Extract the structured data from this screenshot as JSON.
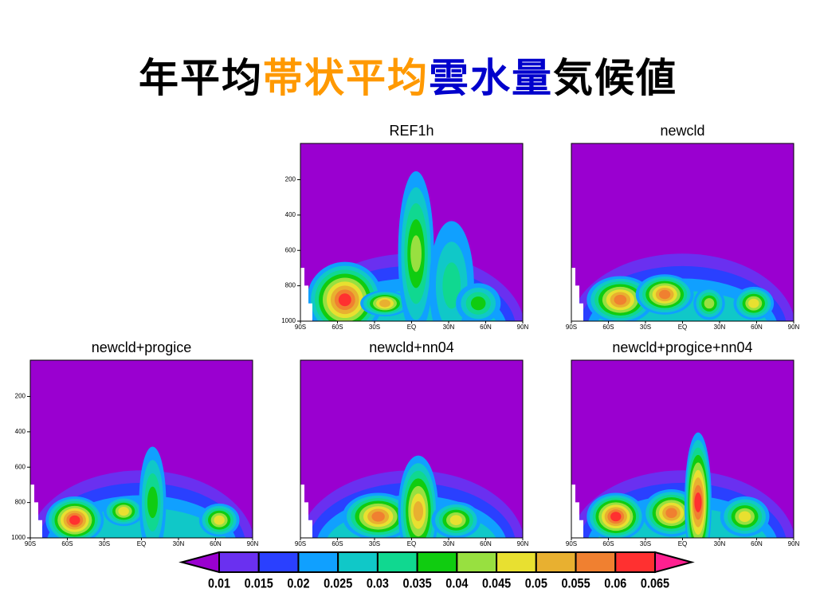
{
  "title": {
    "parts": [
      {
        "text": "年平均",
        "color": "#000000"
      },
      {
        "text": "帯状平均",
        "color": "#ff9900"
      },
      {
        "text": "雲水量",
        "color": "#0000cc"
      },
      {
        "text": "気候値",
        "color": "#000000"
      }
    ]
  },
  "panels": [
    {
      "title": "REF1h",
      "yticks": [
        200,
        400,
        600,
        800,
        1000
      ],
      "xticks": [
        "90S",
        "60S",
        "30S",
        "EQ",
        "30N",
        "60N",
        "90N"
      ]
    },
    {
      "title": "newcld",
      "xticks": [
        "90S",
        "60S",
        "30S",
        "EQ",
        "30N",
        "60N",
        "90N"
      ]
    },
    {
      "title": "newcld+progice",
      "yticks": [
        200,
        400,
        600,
        800,
        1000
      ],
      "xticks": [
        "90S",
        "60S",
        "30S",
        "EQ",
        "30N",
        "60N",
        "90N"
      ]
    },
    {
      "title": "newcld+nn04",
      "xticks": [
        "90S",
        "60S",
        "30S",
        "EQ",
        "30N",
        "60N",
        "90N"
      ]
    },
    {
      "title": "newcld+progice+nn04",
      "xticks": [
        "90S",
        "60S",
        "30S",
        "EQ",
        "30N",
        "60N",
        "90N"
      ]
    }
  ],
  "colorbar": {
    "levels": [
      0.01,
      0.015,
      0.02,
      0.025,
      0.03,
      0.035,
      0.04,
      0.045,
      0.05,
      0.055,
      0.06,
      0.065
    ],
    "colors": [
      "#9a00d0",
      "#6a30f0",
      "#2a40ff",
      "#10a0ff",
      "#10c8c8",
      "#10d890",
      "#10cc10",
      "#98e040",
      "#e8e030",
      "#e8b030",
      "#f08030",
      "#ff3030",
      "#ff2090"
    ]
  }
}
